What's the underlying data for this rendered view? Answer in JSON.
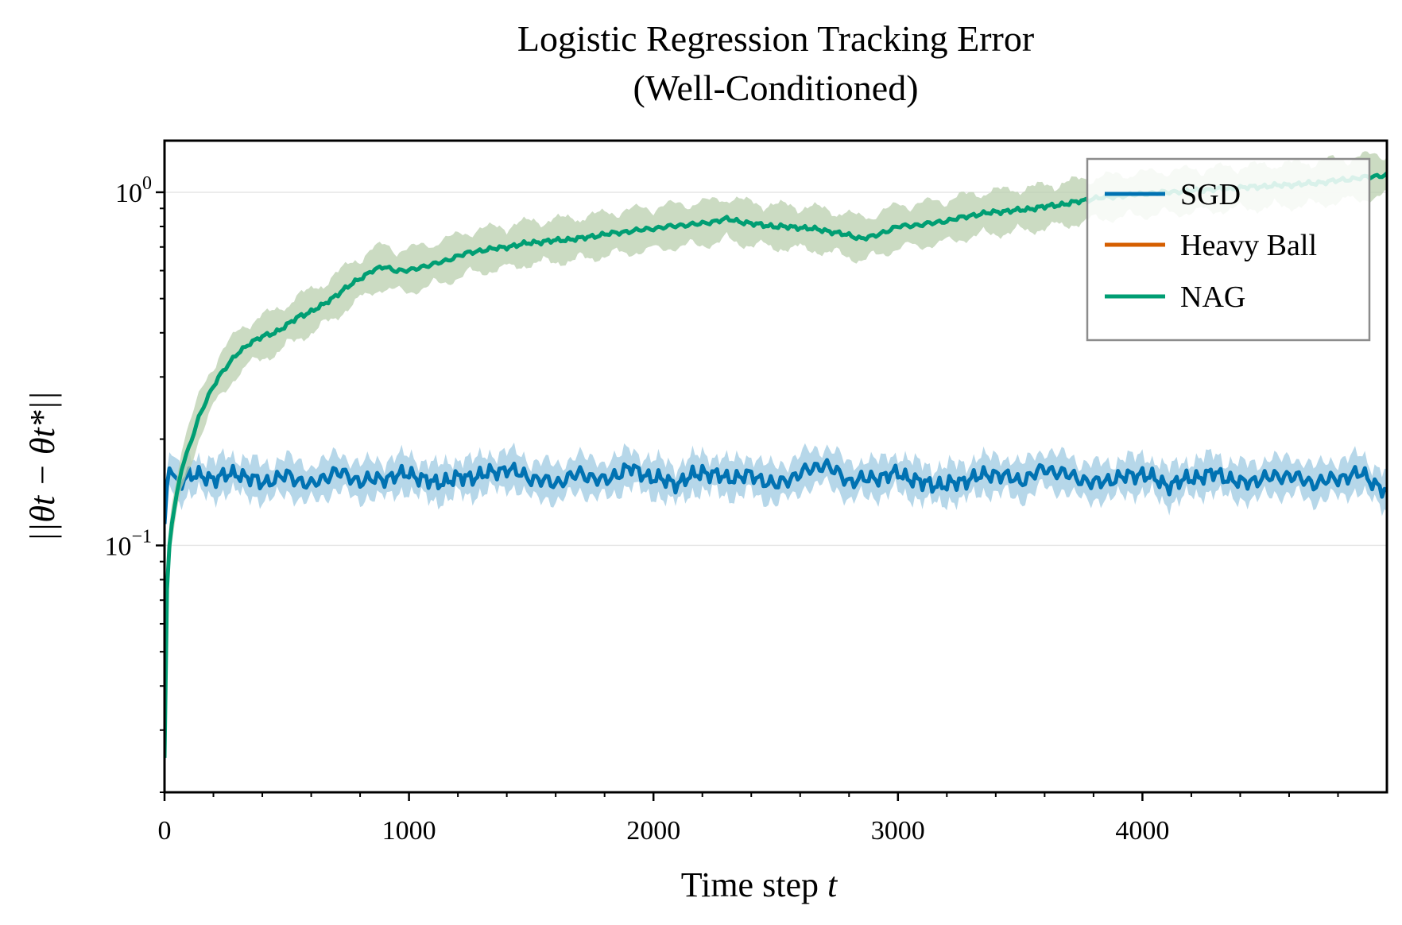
{
  "chart_data": {
    "type": "line",
    "title": "Logistic Regression Tracking Error",
    "subtitle": "(Well-Conditioned)",
    "xlabel": "Time step",
    "xlabel_var": "t",
    "ylabel": "||θt − θt*||",
    "xlim": [
      0,
      5000
    ],
    "ylim": [
      0.02,
      1.4
    ],
    "yscale": "log",
    "x_ticks": [
      0,
      1000,
      2000,
      3000,
      4000
    ],
    "x_tick_labels": [
      "0",
      "1000",
      "2000",
      "3000",
      "4000"
    ],
    "y_major_ticks": [
      {
        "value": 0.1,
        "base": "10",
        "exp": "−1"
      },
      {
        "value": 1,
        "base": "10",
        "exp": "0"
      }
    ],
    "grid": "horizontal major only",
    "legend_position": "top-right",
    "series": [
      {
        "name": "SGD",
        "color": "#0072B2",
        "band_color": "#9ecae1",
        "x": [
          0,
          15,
          30,
          60,
          100,
          200,
          300,
          400,
          500,
          600,
          700,
          800,
          900,
          1000,
          1100,
          1200,
          1300,
          1400,
          1500,
          1600,
          1700,
          1800,
          1900,
          2000,
          2100,
          2200,
          2300,
          2400,
          2500,
          2600,
          2700,
          2800,
          2900,
          3000,
          3100,
          3200,
          3300,
          3400,
          3500,
          3600,
          3700,
          3800,
          3900,
          4000,
          4100,
          4200,
          4300,
          4400,
          4500,
          4600,
          4700,
          4800,
          4900,
          5000
        ],
        "values": [
          0.115,
          0.168,
          0.16,
          0.152,
          0.158,
          0.155,
          0.16,
          0.15,
          0.158,
          0.148,
          0.162,
          0.152,
          0.155,
          0.16,
          0.15,
          0.155,
          0.158,
          0.165,
          0.155,
          0.15,
          0.16,
          0.152,
          0.166,
          0.155,
          0.15,
          0.162,
          0.155,
          0.158,
          0.148,
          0.16,
          0.17,
          0.152,
          0.155,
          0.16,
          0.15,
          0.148,
          0.155,
          0.16,
          0.152,
          0.165,
          0.158,
          0.15,
          0.155,
          0.16,
          0.148,
          0.155,
          0.16,
          0.15,
          0.155,
          0.158,
          0.15,
          0.155,
          0.16,
          0.14
        ],
        "band": 0.06
      },
      {
        "name": "Heavy Ball",
        "color": "#D55E00",
        "x": [],
        "values": []
      },
      {
        "name": "NAG",
        "color": "#009E73",
        "band_color": "#b9cfae",
        "x": [
          0,
          10,
          20,
          30,
          50,
          70,
          100,
          140,
          180,
          220,
          260,
          300,
          350,
          400,
          450,
          500,
          550,
          600,
          650,
          700,
          750,
          800,
          850,
          900,
          950,
          1000,
          1050,
          1100,
          1150,
          1200,
          1250,
          1300,
          1400,
          1500,
          1600,
          1700,
          1800,
          1900,
          2000,
          2100,
          2200,
          2300,
          2400,
          2500,
          2600,
          2700,
          2800,
          2850,
          2900,
          2950,
          3000,
          3100,
          3200,
          3300,
          3400,
          3500,
          3600,
          3700,
          3800,
          3900,
          4000,
          4100,
          4200,
          4300,
          4400,
          4500,
          4600,
          4700,
          4800,
          4900,
          5000
        ],
        "values": [
          0.025,
          0.075,
          0.1,
          0.115,
          0.14,
          0.165,
          0.19,
          0.23,
          0.265,
          0.3,
          0.325,
          0.35,
          0.375,
          0.39,
          0.4,
          0.42,
          0.445,
          0.46,
          0.48,
          0.51,
          0.54,
          0.57,
          0.6,
          0.615,
          0.6,
          0.6,
          0.615,
          0.625,
          0.64,
          0.66,
          0.675,
          0.685,
          0.7,
          0.72,
          0.73,
          0.74,
          0.76,
          0.775,
          0.79,
          0.805,
          0.815,
          0.84,
          0.815,
          0.8,
          0.795,
          0.78,
          0.755,
          0.74,
          0.75,
          0.775,
          0.8,
          0.81,
          0.83,
          0.86,
          0.88,
          0.89,
          0.91,
          0.93,
          0.96,
          0.975,
          0.99,
          1.0,
          1.01,
          1.02,
          1.03,
          1.04,
          1.05,
          1.06,
          1.08,
          1.1,
          1.12
        ],
        "band": 0.07
      }
    ]
  }
}
